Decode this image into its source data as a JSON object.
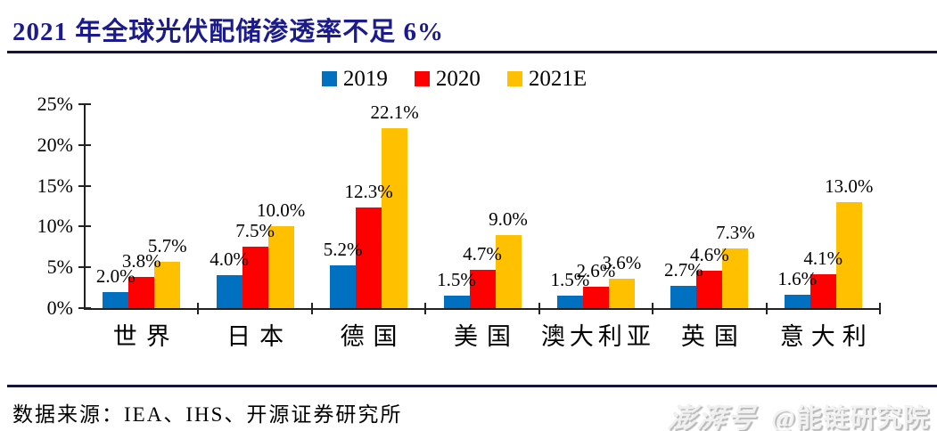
{
  "header": {
    "title": "2021 年全球光伏配储渗透率不足 6%"
  },
  "chart_data": {
    "type": "bar",
    "title": "2021 年全球光伏配储渗透率不足 6%",
    "unit": "%",
    "categories": [
      "世界",
      "日本",
      "德国",
      "美国",
      "澳大利亚",
      "英国",
      "意大利"
    ],
    "series": [
      {
        "name": "2019",
        "color": "#0070C0",
        "values": [
          2.0,
          4.0,
          5.2,
          1.5,
          1.5,
          2.7,
          1.6
        ]
      },
      {
        "name": "2020",
        "color": "#FF0000",
        "values": [
          3.8,
          7.5,
          12.3,
          4.7,
          2.6,
          4.6,
          4.1
        ]
      },
      {
        "name": "2021E",
        "color": "#FFC000",
        "values": [
          5.7,
          10.0,
          22.1,
          9.0,
          3.6,
          7.3,
          13.0
        ]
      }
    ],
    "ylim": [
      0,
      25
    ],
    "ytick_step": 5,
    "ytick_labels": [
      "0%",
      "5%",
      "10%",
      "15%",
      "20%",
      "25%"
    ],
    "legend_position": "top",
    "grid": false,
    "data_labels_visible": true
  },
  "footer": {
    "source": "数据来源：IEA、IHS、开源证券研究所"
  },
  "watermark": {
    "brand": "澎湃号",
    "account": "@能链研究院"
  },
  "colors": {
    "title_text": "#1b1b8e",
    "rule": "#15153a",
    "axis": "#222222",
    "bar_2019": "#0070C0",
    "bar_2020": "#FF0000",
    "bar_2021e": "#FFC000",
    "watermark_text": "#f0f0f0"
  }
}
